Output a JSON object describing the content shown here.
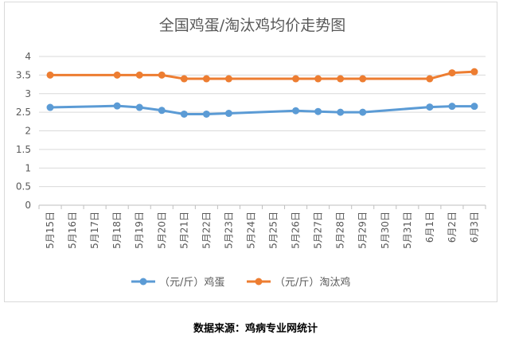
{
  "chart_data": {
    "type": "line",
    "title": "全国鸡蛋/淘汰鸡均价走势图",
    "xlabel": "",
    "ylabel": "",
    "ylim": [
      0,
      4
    ],
    "yticks": [
      "0",
      "0.5",
      "1",
      "1.5",
      "2",
      "2.5",
      "3",
      "3.5",
      "4"
    ],
    "grid": true,
    "legend_position": "bottom",
    "categories": [
      "5月15日",
      "5月16日",
      "5月17日",
      "5月18日",
      "5月19日",
      "5月20日",
      "5月21日",
      "5月22日",
      "5月23日",
      "5月24日",
      "5月25日",
      "5月26日",
      "5月27日",
      "5月28日",
      "5月29日",
      "5月30日",
      "5月31日",
      "6月1日",
      "6月2日",
      "6月3日"
    ],
    "series": [
      {
        "name": "（元/斤）鸡蛋",
        "color": "#5b9bd5",
        "values": [
          2.63,
          null,
          null,
          2.67,
          2.63,
          2.55,
          2.45,
          2.45,
          2.47,
          null,
          null,
          2.54,
          2.52,
          2.5,
          2.5,
          null,
          null,
          2.64,
          2.66,
          2.66
        ]
      },
      {
        "name": "（元/斤）淘汰鸡",
        "color": "#ed7d31",
        "values": [
          3.5,
          null,
          null,
          3.5,
          3.5,
          3.5,
          3.4,
          3.4,
          3.4,
          null,
          null,
          3.4,
          3.4,
          3.4,
          3.4,
          null,
          null,
          3.4,
          3.56,
          3.59
        ]
      }
    ]
  },
  "source": "数据来源：鸡病专业网统计"
}
